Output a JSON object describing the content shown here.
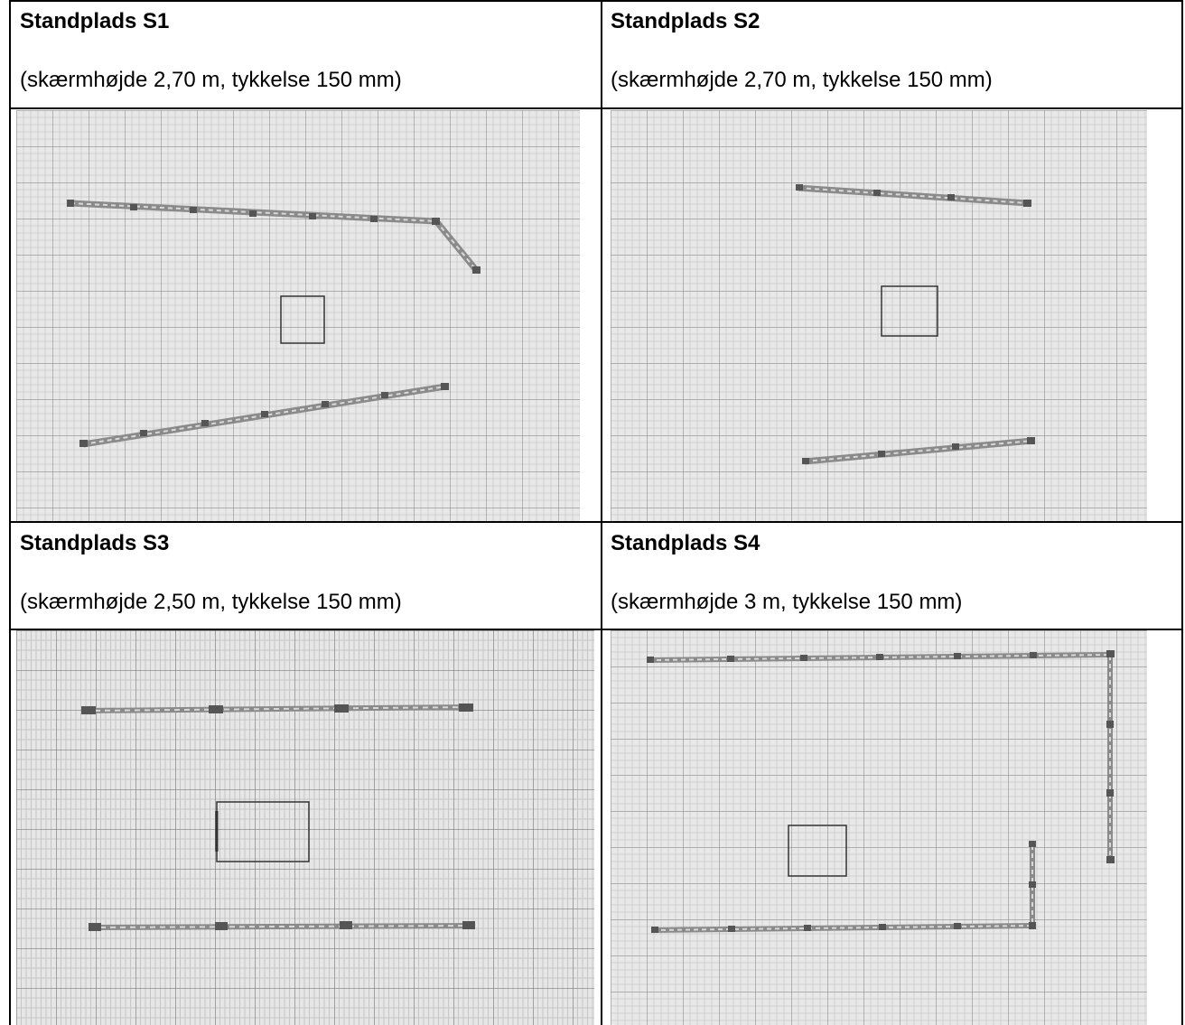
{
  "stands": [
    {
      "title": "Standplads S1",
      "subtitle": "(skærmhøjde 2,70 m, tykkelse 150 mm)"
    },
    {
      "title": "Standplads S2",
      "subtitle": "(skærmhøjde 2,70 m, tykkelse 150 mm)"
    },
    {
      "title": "Standplads S3",
      "subtitle": "(skærmhøjde 2,50 m, tykkelse 150 mm)"
    },
    {
      "title": "Standplads S4",
      "subtitle": "(skærmhøjde 3 m, tykkelse 150 mm)"
    }
  ],
  "colors": {
    "paper": "#e4e4e4",
    "grid_major": "#8c8c8c",
    "grid_minor": "#c4c4c4",
    "screen": "#8a8a8a",
    "block": "#555555",
    "outline": "#333333"
  }
}
